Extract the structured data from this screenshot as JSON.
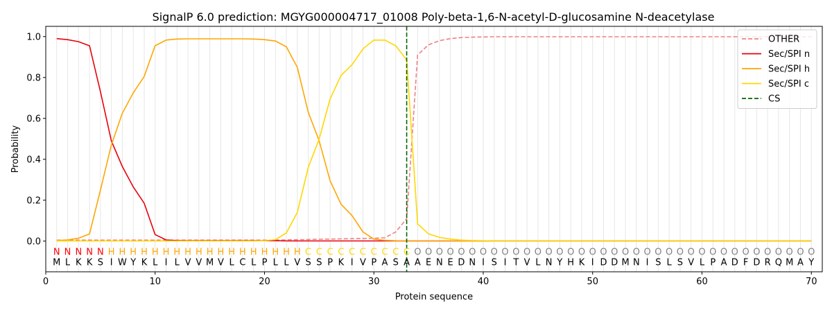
{
  "chart_data": {
    "type": "line",
    "title": "SignalP 6.0 prediction: MGYG000004717_01008 Poly-beta-1,6-N-acetyl-D-glucosamine N-deacetylase",
    "xlabel": "Protein sequence",
    "ylabel": "Probability",
    "xlim": [
      0,
      71
    ],
    "ylim": [
      -0.15,
      1.05
    ],
    "xticks": [
      0,
      10,
      20,
      30,
      40,
      50,
      60,
      70
    ],
    "yticks": [
      0.0,
      0.2,
      0.4,
      0.6,
      0.8,
      1.0
    ],
    "ytick_labels": [
      "0.0",
      "0.2",
      "0.4",
      "0.6",
      "0.8",
      "1.0"
    ],
    "legend_position": "top-right",
    "cleavage_site": 33,
    "sequence": [
      "M",
      "L",
      "K",
      "K",
      "S",
      "I",
      "W",
      "Y",
      "K",
      "L",
      "I",
      "L",
      "V",
      "V",
      "M",
      "V",
      "L",
      "C",
      "L",
      "P",
      "L",
      "L",
      "V",
      "S",
      "S",
      "P",
      "K",
      "I",
      "V",
      "P",
      "A",
      "S",
      "A",
      "A",
      "E",
      "N",
      "E",
      "D",
      "N",
      "I",
      "S",
      "I",
      "T",
      "V",
      "L",
      "N",
      "Y",
      "H",
      "K",
      "I",
      "D",
      "D",
      "M",
      "N",
      "I",
      "S",
      "L",
      "S",
      "V",
      "L",
      "P",
      "A",
      "D",
      "F",
      "D",
      "R",
      "Q",
      "M",
      "A",
      "Y"
    ],
    "region_labels": [
      "N",
      "N",
      "N",
      "N",
      "N",
      "H",
      "H",
      "H",
      "H",
      "H",
      "H",
      "H",
      "H",
      "H",
      "H",
      "H",
      "H",
      "H",
      "H",
      "H",
      "H",
      "H",
      "H",
      "C",
      "C",
      "C",
      "C",
      "C",
      "C",
      "C",
      "C",
      "C",
      "C",
      "O",
      "O",
      "O",
      "O",
      "O",
      "O",
      "O",
      "O",
      "O",
      "O",
      "O",
      "O",
      "O",
      "O",
      "O",
      "O",
      "O",
      "O",
      "O",
      "O",
      "O",
      "O",
      "O",
      "O",
      "O",
      "O",
      "O",
      "O",
      "O",
      "O",
      "O",
      "O",
      "O",
      "O",
      "O",
      "O",
      "O"
    ],
    "region_colors": {
      "N": "#ff0000",
      "H": "#ffa500",
      "C": "#ffd700",
      "O": "#808080"
    },
    "series": [
      {
        "name": "OTHER",
        "color": "#f08080",
        "dash": true,
        "values": [
          0.005,
          0.005,
          0.005,
          0.005,
          0.005,
          0.005,
          0.005,
          0.005,
          0.005,
          0.005,
          0.005,
          0.005,
          0.005,
          0.005,
          0.005,
          0.005,
          0.005,
          0.005,
          0.005,
          0.005,
          0.005,
          0.006,
          0.007,
          0.008,
          0.009,
          0.01,
          0.011,
          0.012,
          0.013,
          0.014,
          0.016,
          0.045,
          0.11,
          0.91,
          0.96,
          0.98,
          0.99,
          0.995,
          0.997,
          0.998,
          0.999,
          0.999,
          0.999,
          0.999,
          0.999,
          0.999,
          0.999,
          0.999,
          0.999,
          0.999,
          0.999,
          0.999,
          0.999,
          0.999,
          0.999,
          0.999,
          0.999,
          0.999,
          0.999,
          0.999,
          0.999,
          0.999,
          0.999,
          0.999,
          0.999,
          0.999,
          0.999,
          0.999,
          0.999,
          0.999
        ]
      },
      {
        "name": "Sec/SPI n",
        "color": "#e8000b",
        "dash": false,
        "values": [
          0.99,
          0.985,
          0.975,
          0.955,
          0.73,
          0.49,
          0.365,
          0.265,
          0.185,
          0.032,
          0.006,
          0.003,
          0.002,
          0.002,
          0.002,
          0.002,
          0.002,
          0.002,
          0.002,
          0.002,
          0.002,
          0.001,
          0.001,
          0.001,
          0.001,
          0.001,
          0.001,
          0.001,
          0.001,
          0.001,
          0.001,
          0.001,
          0.001,
          0.001,
          0.001,
          0.001,
          0.001,
          0.001,
          0.001,
          0.001,
          0.001,
          0.001,
          0.001,
          0.001,
          0.001,
          0.001,
          0.001,
          0.001,
          0.001,
          0.001,
          0.001,
          0.001,
          0.001,
          0.001,
          0.001,
          0.001,
          0.001,
          0.001,
          0.001,
          0.001,
          0.001,
          0.001,
          0.001,
          0.001,
          0.001,
          0.001,
          0.001,
          0.001,
          0.001,
          0.001
        ]
      },
      {
        "name": "Sec/SPI h",
        "color": "#ffa500",
        "dash": false,
        "values": [
          0.003,
          0.006,
          0.014,
          0.035,
          0.25,
          0.47,
          0.625,
          0.725,
          0.805,
          0.955,
          0.983,
          0.988,
          0.989,
          0.989,
          0.989,
          0.989,
          0.989,
          0.989,
          0.988,
          0.985,
          0.978,
          0.95,
          0.85,
          0.63,
          0.49,
          0.295,
          0.18,
          0.125,
          0.045,
          0.01,
          0.004,
          0.002,
          0.001,
          0.001,
          0.001,
          0.001,
          0.001,
          0.001,
          0.001,
          0.001,
          0.001,
          0.001,
          0.001,
          0.001,
          0.001,
          0.001,
          0.001,
          0.001,
          0.001,
          0.001,
          0.001,
          0.001,
          0.001,
          0.001,
          0.001,
          0.001,
          0.001,
          0.001,
          0.001,
          0.001,
          0.001,
          0.001,
          0.001,
          0.001,
          0.001,
          0.001,
          0.001,
          0.001,
          0.001,
          0.001
        ]
      },
      {
        "name": "Sec/SPI c",
        "color": "#ffd700",
        "dash": false,
        "values": [
          0.001,
          0.001,
          0.001,
          0.001,
          0.001,
          0.001,
          0.001,
          0.001,
          0.001,
          0.001,
          0.001,
          0.001,
          0.001,
          0.001,
          0.001,
          0.001,
          0.001,
          0.001,
          0.001,
          0.002,
          0.007,
          0.04,
          0.14,
          0.36,
          0.5,
          0.695,
          0.81,
          0.862,
          0.94,
          0.983,
          0.983,
          0.955,
          0.885,
          0.085,
          0.035,
          0.018,
          0.01,
          0.005,
          0.003,
          0.002,
          0.001,
          0.001,
          0.001,
          0.001,
          0.001,
          0.001,
          0.001,
          0.001,
          0.001,
          0.001,
          0.001,
          0.001,
          0.001,
          0.001,
          0.001,
          0.001,
          0.001,
          0.001,
          0.001,
          0.001,
          0.001,
          0.001,
          0.001,
          0.001,
          0.001,
          0.001,
          0.001,
          0.001,
          0.001,
          0.001
        ]
      },
      {
        "name": "CS",
        "color": "#006400",
        "dash": true,
        "vertical": true
      }
    ]
  }
}
